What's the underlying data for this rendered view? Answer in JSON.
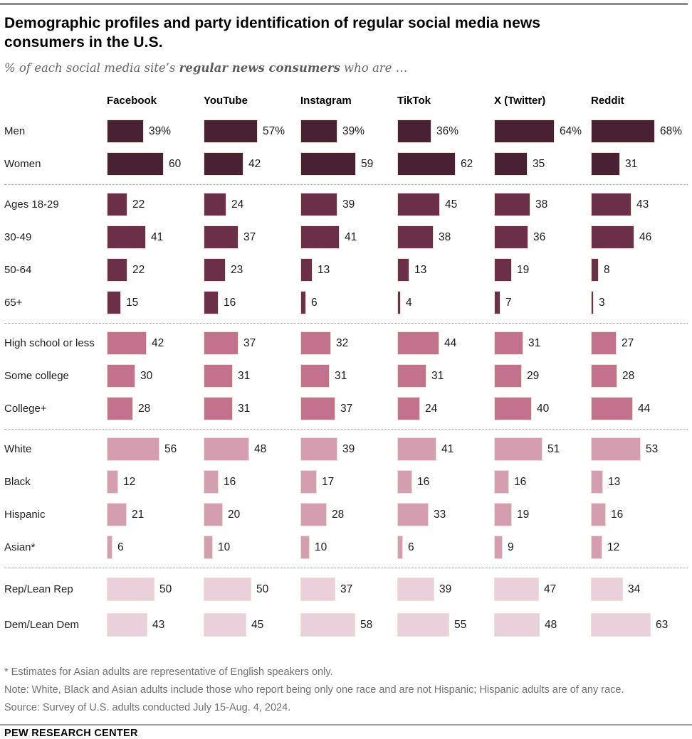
{
  "page": {
    "title": "Demographic profiles and party identification of regular social media news consumers in the U.S.",
    "subtitle": {
      "prefix": "% of each social media site’s ",
      "bold": "regular news consumers",
      "suffix": " who are …"
    },
    "footnotes": [
      "* Estimates for Asian adults are representative of English speakers only.",
      "Note: White, Black and Asian adults include those who report being only one race and are not Hispanic; Hispanic adults are of any race.",
      "Source: Survey of U.S. adults conducted July 15-Aug. 4, 2024."
    ],
    "footer": "PEW RESEARCH CENTER"
  },
  "chart_data": {
    "type": "bar",
    "orientation": "horizontal",
    "unit": "%",
    "axis_max": 100,
    "legend": "none",
    "columns": [
      "Facebook",
      "YouTube",
      "Instagram",
      "TikTok",
      "X (Twitter)",
      "Reddit"
    ],
    "groups": [
      {
        "name": "gender",
        "color": "#4a2132",
        "rows": [
          {
            "label": "Men",
            "suffix": "%",
            "values": [
              39,
              57,
              39,
              36,
              64,
              68
            ]
          },
          {
            "label": "Women",
            "suffix": "",
            "values": [
              60,
              42,
              59,
              62,
              35,
              31
            ]
          }
        ]
      },
      {
        "name": "age",
        "color": "#6b2f48",
        "rows": [
          {
            "label": "Ages 18-29",
            "suffix": "",
            "values": [
              22,
              24,
              39,
              45,
              38,
              43
            ]
          },
          {
            "label": "30-49",
            "suffix": "",
            "values": [
              41,
              37,
              41,
              38,
              36,
              46
            ]
          },
          {
            "label": "50-64",
            "suffix": "",
            "values": [
              22,
              23,
              13,
              13,
              19,
              8
            ]
          },
          {
            "label": "65+",
            "suffix": "",
            "values": [
              15,
              16,
              6,
              4,
              7,
              3
            ]
          }
        ]
      },
      {
        "name": "education",
        "color": "#c4718e",
        "rows": [
          {
            "label": "High school or less",
            "suffix": "",
            "values": [
              42,
              37,
              32,
              44,
              31,
              27
            ]
          },
          {
            "label": "Some college",
            "suffix": "",
            "values": [
              30,
              31,
              31,
              31,
              29,
              28
            ]
          },
          {
            "label": "College+",
            "suffix": "",
            "values": [
              28,
              31,
              37,
              24,
              40,
              44
            ]
          }
        ]
      },
      {
        "name": "race-ethnicity",
        "color": "#d49eb0",
        "rows": [
          {
            "label": "White",
            "suffix": "",
            "values": [
              56,
              48,
              39,
              41,
              51,
              53
            ]
          },
          {
            "label": "Black",
            "suffix": "",
            "values": [
              12,
              16,
              17,
              16,
              16,
              13
            ]
          },
          {
            "label": "Hispanic",
            "suffix": "",
            "values": [
              21,
              20,
              28,
              33,
              19,
              16
            ]
          },
          {
            "label": "Asian*",
            "suffix": "",
            "values": [
              6,
              10,
              10,
              6,
              9,
              12
            ]
          }
        ]
      },
      {
        "name": "party",
        "color": "#ead0da",
        "rows": [
          {
            "label": "Rep/Lean Rep",
            "suffix": "",
            "values": [
              50,
              50,
              37,
              39,
              47,
              34
            ]
          },
          {
            "label": "Dem/Lean Dem",
            "suffix": "",
            "values": [
              43,
              45,
              58,
              55,
              48,
              63
            ]
          }
        ]
      }
    ]
  }
}
